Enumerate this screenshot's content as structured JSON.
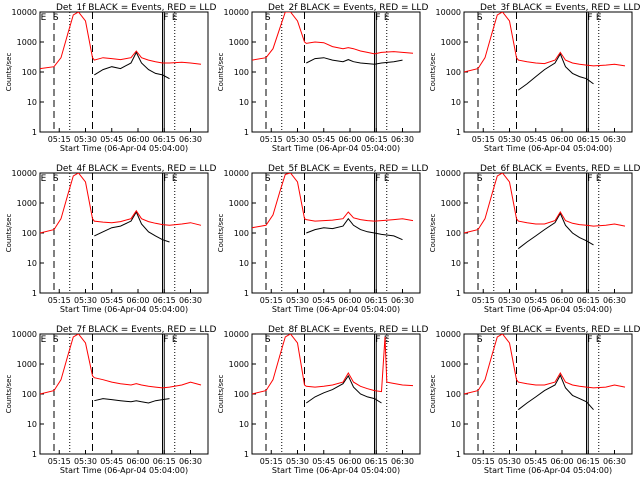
{
  "colors": {
    "events": "#000000",
    "lld": "#ff0000",
    "background": "#ffffff"
  },
  "common": {
    "xlabel": "Start Time (06-Apr-04 05:04:00)",
    "ylabel": "Counts/sec",
    "x_ticks": [
      "05:15",
      "05:30",
      "05:45",
      "06:00",
      "06:15",
      "06:30"
    ],
    "y_ticks": [
      "10000",
      "1000",
      "100",
      "10",
      "1"
    ],
    "y_scale": "log",
    "ylim": [
      1,
      10000
    ]
  },
  "chart_data": [
    {
      "type": "line",
      "title": "Det_1f BLACK = Events, RED = LLD",
      "markers": [
        "E",
        "S",
        "F",
        "E"
      ],
      "series": [
        {
          "name": "Events",
          "x": [
            "05:04",
            "05:12",
            "05:16",
            "05:20",
            "05:23",
            "05:26",
            "05:30",
            "05:34",
            "05:35",
            "05:40",
            "05:45",
            "05:50",
            "05:56",
            "05:59",
            "06:02",
            "06:06",
            "06:10",
            "06:14",
            "06:18"
          ],
          "values": [
            null,
            null,
            null,
            null,
            null,
            null,
            null,
            null,
            80,
            120,
            150,
            130,
            200,
            450,
            200,
            120,
            90,
            80,
            60
          ]
        },
        {
          "name": "LLD",
          "x": [
            "05:04",
            "05:12",
            "05:16",
            "05:20",
            "05:23",
            "05:26",
            "05:30",
            "05:34",
            "05:35",
            "05:40",
            "05:45",
            "05:50",
            "05:56",
            "05:59",
            "06:02",
            "06:06",
            "06:10",
            "06:14",
            "06:18",
            "06:25",
            "06:30",
            "06:36"
          ],
          "values": [
            130,
            150,
            300,
            2000,
            8000,
            10000,
            5000,
            300,
            250,
            300,
            280,
            260,
            300,
            500,
            300,
            250,
            220,
            200,
            200,
            210,
            200,
            180
          ]
        }
      ]
    },
    {
      "type": "line",
      "title": "Det_2f BLACK = Events, RED = LLD",
      "markers": [
        "S",
        "F",
        "E"
      ],
      "series": [
        {
          "name": "Events",
          "x": [
            "05:04",
            "05:12",
            "05:16",
            "05:20",
            "05:23",
            "05:26",
            "05:30",
            "05:34",
            "05:35",
            "05:40",
            "05:45",
            "05:50",
            "05:56",
            "05:59",
            "06:02",
            "06:06",
            "06:10",
            "06:14",
            "06:18",
            "06:25",
            "06:30"
          ],
          "values": [
            null,
            null,
            null,
            null,
            null,
            null,
            null,
            null,
            200,
            280,
            300,
            250,
            220,
            260,
            220,
            200,
            190,
            180,
            200,
            220,
            250
          ]
        },
        {
          "name": "LLD",
          "x": [
            "05:04",
            "05:12",
            "05:16",
            "05:20",
            "05:23",
            "05:26",
            "05:30",
            "05:34",
            "05:35",
            "05:40",
            "05:45",
            "05:50",
            "05:56",
            "05:59",
            "06:02",
            "06:06",
            "06:10",
            "06:14",
            "06:18",
            "06:25",
            "06:30",
            "06:36"
          ],
          "values": [
            250,
            300,
            600,
            3000,
            10000,
            10000,
            5000,
            1000,
            900,
            1000,
            950,
            700,
            600,
            650,
            600,
            500,
            450,
            400,
            450,
            480,
            450,
            420
          ]
        }
      ]
    },
    {
      "type": "line",
      "title": "Det_3f BLACK = Events, RED = LLD",
      "markers": [
        "S",
        "F",
        "E"
      ],
      "series": [
        {
          "name": "Events",
          "x": [
            "05:04",
            "05:12",
            "05:16",
            "05:20",
            "05:23",
            "05:26",
            "05:30",
            "05:34",
            "05:35",
            "05:40",
            "05:45",
            "05:50",
            "05:56",
            "05:59",
            "06:02",
            "06:06",
            "06:10",
            "06:14",
            "06:18"
          ],
          "values": [
            null,
            null,
            null,
            null,
            null,
            null,
            null,
            null,
            25,
            40,
            70,
            120,
            200,
            400,
            150,
            90,
            70,
            60,
            40
          ]
        },
        {
          "name": "LLD",
          "x": [
            "05:04",
            "05:12",
            "05:16",
            "05:20",
            "05:23",
            "05:26",
            "05:30",
            "05:34",
            "05:35",
            "05:40",
            "05:45",
            "05:50",
            "05:56",
            "05:59",
            "06:02",
            "06:06",
            "06:10",
            "06:14",
            "06:18",
            "06:25",
            "06:30",
            "06:36"
          ],
          "values": [
            100,
            130,
            300,
            2000,
            8000,
            10000,
            5000,
            300,
            250,
            220,
            200,
            190,
            250,
            450,
            250,
            200,
            180,
            170,
            160,
            170,
            180,
            160
          ]
        }
      ]
    },
    {
      "type": "line",
      "title": "Det_4f BLACK = Events, RED = LLD",
      "markers": [
        "E",
        "S",
        "F",
        "E"
      ],
      "series": [
        {
          "name": "Events",
          "x": [
            "05:04",
            "05:12",
            "05:16",
            "05:20",
            "05:23",
            "05:26",
            "05:30",
            "05:34",
            "05:35",
            "05:40",
            "05:45",
            "05:50",
            "05:56",
            "05:59",
            "06:02",
            "06:06",
            "06:10",
            "06:14",
            "06:18"
          ],
          "values": [
            null,
            null,
            null,
            null,
            null,
            null,
            null,
            null,
            80,
            110,
            150,
            170,
            250,
            500,
            200,
            110,
            80,
            60,
            50
          ]
        },
        {
          "name": "LLD",
          "x": [
            "05:04",
            "05:12",
            "05:16",
            "05:20",
            "05:23",
            "05:26",
            "05:30",
            "05:34",
            "05:35",
            "05:40",
            "05:45",
            "05:50",
            "05:56",
            "05:59",
            "06:02",
            "06:06",
            "06:10",
            "06:14",
            "06:18",
            "06:25",
            "06:30",
            "06:36"
          ],
          "values": [
            100,
            130,
            300,
            2000,
            8000,
            10000,
            5000,
            300,
            250,
            230,
            220,
            240,
            300,
            550,
            300,
            240,
            210,
            190,
            180,
            200,
            220,
            180
          ]
        }
      ]
    },
    {
      "type": "line",
      "title": "Det_5f BLACK = Events, RED = LLD",
      "markers": [
        "S",
        "F",
        "E"
      ],
      "series": [
        {
          "name": "Events",
          "x": [
            "05:04",
            "05:12",
            "05:16",
            "05:20",
            "05:23",
            "05:26",
            "05:30",
            "05:34",
            "05:35",
            "05:40",
            "05:45",
            "05:50",
            "05:56",
            "05:59",
            "06:02",
            "06:06",
            "06:10",
            "06:14",
            "06:18",
            "06:25",
            "06:30"
          ],
          "values": [
            null,
            null,
            null,
            null,
            null,
            null,
            null,
            null,
            100,
            130,
            150,
            140,
            170,
            300,
            180,
            130,
            110,
            100,
            90,
            80,
            60
          ]
        },
        {
          "name": "LLD",
          "x": [
            "05:04",
            "05:12",
            "05:16",
            "05:20",
            "05:23",
            "05:26",
            "05:30",
            "05:34",
            "05:35",
            "05:40",
            "05:45",
            "05:50",
            "05:56",
            "05:59",
            "06:02",
            "06:06",
            "06:10",
            "06:14",
            "06:18",
            "06:25",
            "06:30",
            "06:36"
          ],
          "values": [
            150,
            180,
            400,
            2500,
            9000,
            10000,
            5000,
            300,
            280,
            250,
            260,
            270,
            300,
            500,
            320,
            280,
            260,
            250,
            260,
            280,
            300,
            260
          ]
        }
      ]
    },
    {
      "type": "line",
      "title": "Det_6f BLACK = Events, RED = LLD",
      "markers": [
        "S",
        "F",
        "E"
      ],
      "series": [
        {
          "name": "Events",
          "x": [
            "05:04",
            "05:12",
            "05:16",
            "05:20",
            "05:23",
            "05:26",
            "05:30",
            "05:34",
            "05:35",
            "05:40",
            "05:45",
            "05:50",
            "05:56",
            "05:59",
            "06:02",
            "06:06",
            "06:10",
            "06:14",
            "06:18"
          ],
          "values": [
            null,
            null,
            null,
            null,
            null,
            null,
            null,
            null,
            30,
            50,
            80,
            130,
            220,
            450,
            180,
            100,
            70,
            55,
            40
          ]
        },
        {
          "name": "LLD",
          "x": [
            "05:04",
            "05:12",
            "05:16",
            "05:20",
            "05:23",
            "05:26",
            "05:30",
            "05:34",
            "05:35",
            "05:40",
            "05:45",
            "05:50",
            "05:56",
            "05:59",
            "06:02",
            "06:06",
            "06:10",
            "06:14",
            "06:18",
            "06:25",
            "06:30",
            "06:36"
          ],
          "values": [
            100,
            130,
            300,
            2000,
            8000,
            10000,
            5000,
            300,
            250,
            220,
            200,
            200,
            260,
            500,
            260,
            210,
            190,
            180,
            170,
            180,
            200,
            170
          ]
        }
      ]
    },
    {
      "type": "line",
      "title": "Det_7f BLACK = Events, RED = LLD",
      "markers": [
        "E",
        "S",
        "F",
        "E"
      ],
      "series": [
        {
          "name": "Events",
          "x": [
            "05:04",
            "05:12",
            "05:16",
            "05:20",
            "05:23",
            "05:26",
            "05:30",
            "05:34",
            "05:35",
            "05:40",
            "05:45",
            "05:50",
            "05:56",
            "05:59",
            "06:02",
            "06:06",
            "06:10",
            "06:14",
            "06:18"
          ],
          "values": [
            null,
            null,
            null,
            null,
            null,
            null,
            null,
            null,
            60,
            70,
            65,
            60,
            55,
            60,
            55,
            50,
            60,
            65,
            70
          ]
        },
        {
          "name": "LLD",
          "x": [
            "05:04",
            "05:12",
            "05:16",
            "05:20",
            "05:23",
            "05:26",
            "05:30",
            "05:34",
            "05:35",
            "05:40",
            "05:45",
            "05:50",
            "05:56",
            "05:59",
            "06:02",
            "06:06",
            "06:10",
            "06:14",
            "06:18",
            "06:25",
            "06:30",
            "06:36"
          ],
          "values": [
            100,
            130,
            300,
            2000,
            8000,
            10000,
            5000,
            400,
            350,
            300,
            250,
            220,
            200,
            220,
            200,
            180,
            170,
            160,
            170,
            200,
            250,
            200
          ]
        }
      ]
    },
    {
      "type": "line",
      "title": "Det_8f BLACK = Events, RED = LLD",
      "markers": [
        "S",
        "F",
        "E"
      ],
      "series": [
        {
          "name": "Events",
          "x": [
            "05:04",
            "05:12",
            "05:16",
            "05:20",
            "05:23",
            "05:26",
            "05:30",
            "05:34",
            "05:35",
            "05:40",
            "05:45",
            "05:50",
            "05:56",
            "05:59",
            "06:02",
            "06:06",
            "06:10",
            "06:14",
            "06:18"
          ],
          "values": [
            null,
            null,
            null,
            null,
            null,
            null,
            null,
            null,
            50,
            80,
            110,
            140,
            220,
            400,
            170,
            100,
            80,
            70,
            50
          ]
        },
        {
          "name": "LLD",
          "x": [
            "05:04",
            "05:12",
            "05:16",
            "05:20",
            "05:23",
            "05:26",
            "05:30",
            "05:34",
            "05:35",
            "05:40",
            "05:45",
            "05:50",
            "05:56",
            "05:59",
            "06:02",
            "06:06",
            "06:10",
            "06:14",
            "06:18",
            "06:20",
            "06:21",
            "06:24",
            "06:30",
            "06:36"
          ],
          "values": [
            100,
            130,
            300,
            2000,
            8000,
            10000,
            5000,
            200,
            180,
            170,
            180,
            200,
            250,
            500,
            250,
            180,
            150,
            130,
            120,
            8000,
            250,
            230,
            200,
            190
          ]
        }
      ]
    },
    {
      "type": "line",
      "title": "Det_9f BLACK = Events, RED = LLD",
      "markers": [
        "S",
        "F",
        "E"
      ],
      "series": [
        {
          "name": "Events",
          "x": [
            "05:04",
            "05:12",
            "05:16",
            "05:20",
            "05:23",
            "05:26",
            "05:30",
            "05:34",
            "05:35",
            "05:40",
            "05:45",
            "05:50",
            "05:56",
            "05:59",
            "06:02",
            "06:06",
            "06:10",
            "06:14",
            "06:18"
          ],
          "values": [
            null,
            null,
            null,
            null,
            null,
            null,
            null,
            null,
            30,
            50,
            80,
            130,
            200,
            420,
            160,
            90,
            70,
            55,
            30
          ]
        },
        {
          "name": "LLD",
          "x": [
            "05:04",
            "05:12",
            "05:16",
            "05:20",
            "05:23",
            "05:26",
            "05:30",
            "05:34",
            "05:35",
            "05:40",
            "05:45",
            "05:50",
            "05:56",
            "05:59",
            "06:02",
            "06:06",
            "06:10",
            "06:14",
            "06:18",
            "06:25",
            "06:30",
            "06:36"
          ],
          "values": [
            100,
            130,
            300,
            2000,
            8000,
            10000,
            5000,
            300,
            250,
            220,
            200,
            200,
            250,
            500,
            250,
            200,
            180,
            170,
            160,
            170,
            200,
            170
          ]
        }
      ]
    }
  ]
}
